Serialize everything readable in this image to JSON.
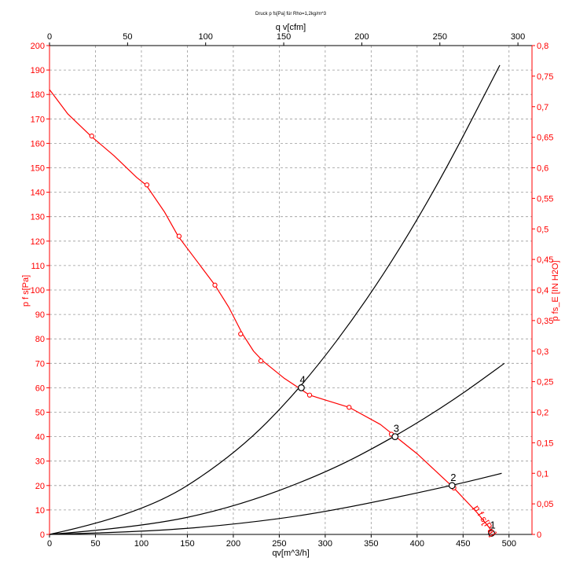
{
  "colors": {
    "fan_curve": "#ff0000",
    "system_curve": "#000000",
    "grid": "#9a9a9a",
    "black": "#000000",
    "red": "#ff0000"
  },
  "chart_data": {
    "type": "line",
    "title": "Druck p fs[Pa] für Rho=1,2kg/m^3",
    "xlabel": "qv[m^3/h]",
    "x2label": "q v[cfm]",
    "ylabel": "p  f s[Pa]",
    "y2label": "p fs_E [IN H2O]",
    "xlim": [
      0,
      525
    ],
    "ylim": [
      0,
      200
    ],
    "x2lim": [
      0,
      309
    ],
    "y2lim": [
      0,
      0.8
    ],
    "grid": true,
    "x_ticks": [
      "0",
      "50",
      "100",
      "150",
      "200",
      "250",
      "300",
      "350",
      "400",
      "450",
      "500"
    ],
    "x2_ticks": [
      "0",
      "50",
      "100",
      "150",
      "200",
      "250",
      "300"
    ],
    "y_ticks": [
      "0",
      "10",
      "20",
      "30",
      "40",
      "50",
      "60",
      "70",
      "80",
      "90",
      "100",
      "110",
      "120",
      "130",
      "140",
      "150",
      "160",
      "170",
      "180",
      "190",
      "200"
    ],
    "y2_ticks": [
      "0",
      "0,05",
      "0,1",
      "0,15",
      "0,2",
      "0,25",
      "0,3",
      "0,35",
      "0,4",
      "0,45",
      "0,5",
      "0,55",
      "0,6",
      "0,65",
      "0,7",
      "0,75",
      "0,8"
    ],
    "fan_curve": {
      "name": "p  f s[Pa]",
      "x": [
        0,
        20,
        45,
        70,
        95,
        105,
        125,
        140,
        160,
        180,
        195,
        210,
        222,
        232,
        255,
        283,
        300,
        326,
        360,
        400,
        440,
        465,
        478,
        483
      ],
      "y": [
        182,
        172,
        163,
        155,
        146,
        143,
        132,
        122,
        112,
        102,
        93,
        82,
        75,
        71,
        64,
        57,
        55,
        52,
        45,
        33,
        19,
        9,
        3,
        0
      ]
    },
    "fan_markers": {
      "x": [
        46,
        106,
        141,
        180,
        208,
        230,
        283,
        326,
        372,
        440,
        480
      ],
      "y": [
        163,
        143,
        122,
        102,
        82,
        71,
        57,
        52,
        41,
        19,
        1
      ]
    },
    "system_curves": [
      {
        "x": [
          0,
          100,
          200,
          274,
          350,
          420,
          490
        ],
        "y": [
          0,
          8,
          32,
          60,
          98,
          141,
          192
        ]
      },
      {
        "x": [
          0,
          100,
          200,
          300,
          376,
          440,
          495
        ],
        "y": [
          0,
          3,
          11,
          25,
          40,
          55,
          70
        ]
      },
      {
        "x": [
          0,
          100,
          200,
          300,
          438,
          492
        ],
        "y": [
          0,
          1,
          4,
          9,
          20,
          25
        ]
      }
    ],
    "operating_points": [
      {
        "label": "1",
        "x": 481,
        "y": 0.5
      },
      {
        "label": "2",
        "x": 438,
        "y": 20
      },
      {
        "label": "3",
        "x": 376,
        "y": 40
      },
      {
        "label": "4",
        "x": 274,
        "y": 60
      }
    ],
    "fan_curve_label": "p  f s[Pa]"
  }
}
